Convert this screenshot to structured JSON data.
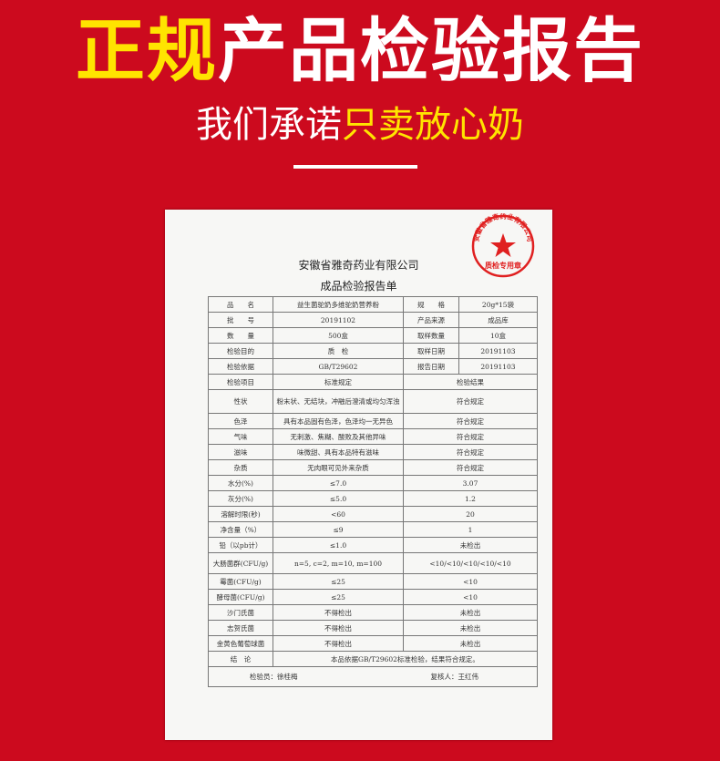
{
  "banner": {
    "title_highlight": "正规",
    "title_rest": "产品检验报告",
    "subtitle_plain": "我们承诺",
    "subtitle_highlight": "只卖放心奶"
  },
  "colors": {
    "background": "#cc0a1e",
    "highlight": "#ffe400",
    "stamp": "#e02020"
  },
  "report": {
    "company": "安徽省雅奇药业有限公司",
    "doc_title": "成品检验报告单",
    "stamp": {
      "ring_text": "安徽省雅奇药业有限公司",
      "center_text": "质检专用章",
      "icon": "star-icon"
    },
    "info_rows": [
      [
        "品　　名",
        "益生菌驼奶多维驼奶营养粉",
        "规　　格",
        "20g*15袋"
      ],
      [
        "批　　号",
        "20191102",
        "产品来源",
        "成品库"
      ],
      [
        "数　　量",
        "500盒",
        "取样数量",
        "10盒"
      ],
      [
        "检验目的",
        "质　检",
        "取样日期",
        "20191103"
      ],
      [
        "检验依据",
        "GB/T29602",
        "报告日期",
        "20191103"
      ]
    ],
    "items_header": [
      "检验项目",
      "标准规定",
      "检验结果"
    ],
    "items": [
      [
        "性状",
        "粉末状、无结块，冲融后澄清或均匀浑浊",
        "符合规定"
      ],
      [
        "色泽",
        "具有本品固有色泽，色泽均一无异色",
        "符合规定"
      ],
      [
        "气味",
        "无刺激、焦糊、酸败及其他异味",
        "符合规定"
      ],
      [
        "滋味",
        "味微甜、具有本品特有滋味",
        "符合规定"
      ],
      [
        "杂质",
        "无肉眼可见外来杂质",
        "符合规定"
      ],
      [
        "水分(%)",
        "≤7.0",
        "3.07"
      ],
      [
        "灰分(%)",
        "≤5.0",
        "1.2"
      ],
      [
        "溶解时限(秒)",
        "<60",
        "20"
      ],
      [
        "净含量（%）",
        "≤9",
        "1"
      ],
      [
        "铅（以pb计）",
        "≤1.0",
        "未检出"
      ],
      [
        "大肠菌群(CFU/g)",
        "n=5, c=2, m=10, m=100",
        "<10/<10/<10/<10/<10"
      ],
      [
        "霉菌(CFU/g)",
        "≤25",
        "<10"
      ],
      [
        "酵母菌(CFU/g)",
        "≤25",
        "<10"
      ],
      [
        "沙门氏菌",
        "不得检出",
        "未检出"
      ],
      [
        "志贺氏菌",
        "不得检出",
        "未检出"
      ],
      [
        "金黄色葡萄球菌",
        "不得检出",
        "未检出"
      ]
    ],
    "conclusion_label": "结　论",
    "conclusion": "本品依据GB/T29602标准检验，结果符合规定。",
    "inspector": "检验员：徐桂梅",
    "reviewer": "复核人：王红伟"
  }
}
